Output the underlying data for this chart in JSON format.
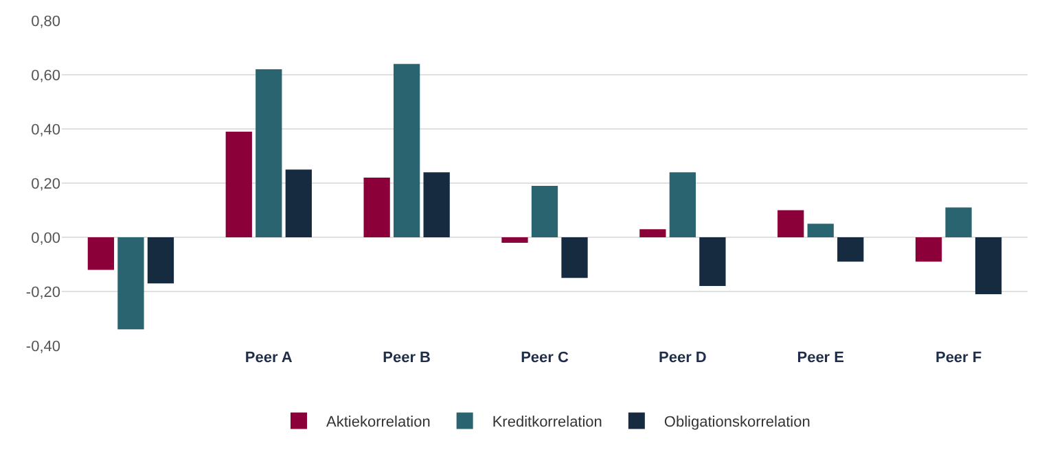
{
  "chart_data": {
    "type": "bar",
    "categories": [
      null,
      "Peer A",
      "Peer B",
      "Peer C",
      "Peer D",
      "Peer E",
      "Peer F"
    ],
    "series": [
      {
        "name": "Aktiekorrelation",
        "color": "#8b0038",
        "values": [
          -0.12,
          0.39,
          0.22,
          -0.02,
          0.03,
          0.1,
          -0.09
        ]
      },
      {
        "name": "Kreditkorrelation",
        "color": "#2a6470",
        "values": [
          -0.34,
          0.62,
          0.64,
          0.19,
          0.24,
          0.05,
          0.11
        ]
      },
      {
        "name": "Obligationskorrelation",
        "color": "#162a40",
        "values": [
          -0.17,
          0.25,
          0.24,
          -0.15,
          -0.18,
          -0.09,
          -0.21
        ]
      }
    ],
    "ylim": [
      -0.4,
      0.8
    ],
    "yticks": [
      {
        "value": -0.4,
        "label": "-0,40"
      },
      {
        "value": -0.2,
        "label": "-0,20"
      },
      {
        "value": 0,
        "label": "0,00"
      },
      {
        "value": 0.2,
        "label": "0,20"
      },
      {
        "value": 0.4,
        "label": "0,40"
      },
      {
        "value": 0.6,
        "label": "0,60"
      },
      {
        "value": 0.8,
        "label": "0,80"
      }
    ],
    "grid": "y",
    "legend": "bottom"
  }
}
